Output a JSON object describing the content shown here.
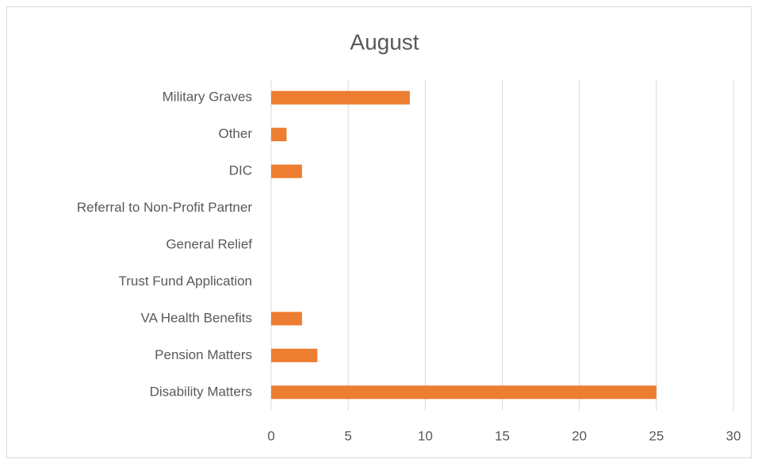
{
  "chart_data": {
    "type": "barh",
    "title": "August",
    "categories": [
      "Military Graves",
      "Other",
      "DIC",
      "Referral to Non-Profit Partner",
      "General Relief",
      "Trust Fund Application",
      "VA Health Benefits",
      "Pension Matters",
      "Disability Matters"
    ],
    "values": [
      9,
      1,
      2,
      0,
      0,
      0,
      2,
      3,
      25
    ],
    "color": "#ed7d31",
    "xlim": [
      0,
      30
    ],
    "xticks": [
      0,
      5,
      10,
      15,
      20,
      25,
      30
    ],
    "grid": true
  }
}
